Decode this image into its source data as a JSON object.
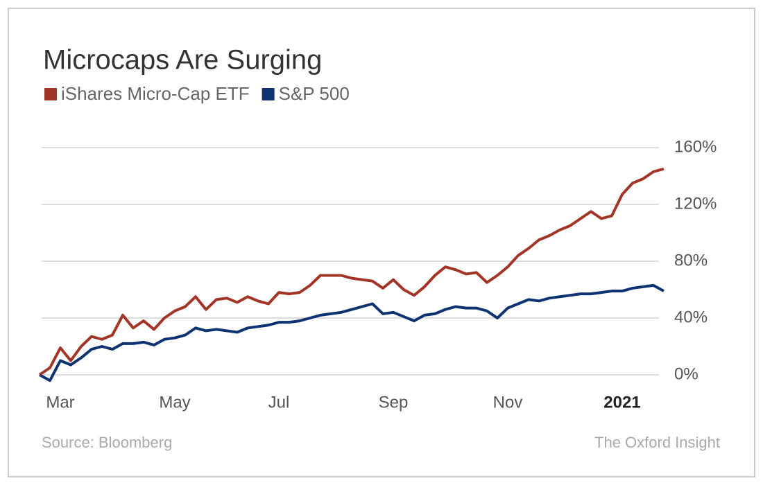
{
  "chart_data": {
    "type": "line",
    "title": "Microcaps Are Surging",
    "source": "Source: Bloomberg",
    "credit": "The Oxford Insight",
    "categories": [
      null,
      null,
      "Mar",
      null,
      null,
      null,
      null,
      null,
      null,
      null,
      null,
      null,
      null,
      "May",
      null,
      null,
      null,
      null,
      null,
      null,
      null,
      null,
      null,
      "Jul",
      null,
      null,
      null,
      null,
      null,
      null,
      null,
      null,
      null,
      null,
      "Sep",
      null,
      null,
      null,
      null,
      null,
      null,
      null,
      null,
      null,
      null,
      "Nov",
      null,
      null,
      null,
      null,
      null,
      null,
      null,
      null,
      null,
      null,
      "2021",
      null,
      null,
      null,
      null
    ],
    "bold_category": "2021",
    "series": [
      {
        "name": "iShares Micro-Cap ETF",
        "color": "#a33526",
        "values": [
          0,
          5,
          19,
          10,
          20,
          27,
          25,
          28,
          42,
          33,
          38,
          32,
          40,
          45,
          48,
          55,
          46,
          53,
          54,
          51,
          55,
          52,
          50,
          58,
          57,
          58,
          63,
          70,
          70,
          70,
          68,
          67,
          66,
          61,
          67,
          60,
          56,
          62,
          70,
          76,
          74,
          71,
          72,
          65,
          70,
          76,
          84,
          89,
          95,
          98,
          102,
          105,
          110,
          115,
          110,
          112,
          127,
          135,
          138,
          143,
          145
        ]
      },
      {
        "name": "S&P 500",
        "color": "#0e3373",
        "values": [
          0,
          -4,
          10,
          7,
          12,
          18,
          20,
          18,
          22,
          22,
          23,
          21,
          25,
          26,
          28,
          33,
          31,
          32,
          31,
          30,
          33,
          34,
          35,
          37,
          37,
          38,
          40,
          42,
          43,
          44,
          46,
          48,
          50,
          43,
          44,
          41,
          38,
          42,
          43,
          46,
          48,
          47,
          47,
          45,
          40,
          47,
          50,
          53,
          52,
          54,
          55,
          56,
          57,
          57,
          58,
          59,
          59,
          61,
          62,
          63,
          59
        ]
      }
    ],
    "ylim": [
      -10,
      160
    ],
    "yticks": [
      {
        "value": 0,
        "label": "0%"
      },
      {
        "value": 40,
        "label": "40%"
      },
      {
        "value": 80,
        "label": "80%"
      },
      {
        "value": 120,
        "label": "120%"
      },
      {
        "value": 160,
        "label": "160%"
      }
    ],
    "grid": true
  }
}
